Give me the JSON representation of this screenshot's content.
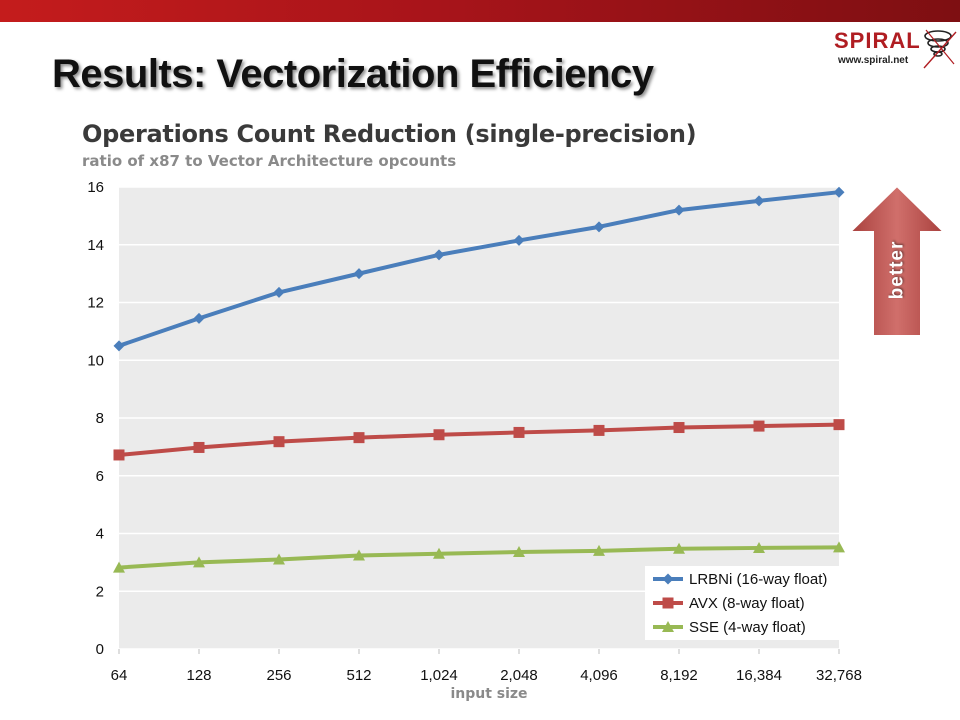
{
  "slide": {
    "title": "Results: Vectorization Efficiency",
    "logo_text": "SPIRAL",
    "logo_url": "www.spiral.net",
    "accent_color": "#b01d22"
  },
  "better_label": "better",
  "chart_data": {
    "type": "line",
    "title": "Operations Count Reduction (single-precision)",
    "subtitle": "ratio of x87 to Vector Architecture opcounts",
    "xlabel": "input size",
    "ylabel": "",
    "categories": [
      "64",
      "128",
      "256",
      "512",
      "1,024",
      "2,048",
      "4,096",
      "8,192",
      "16,384",
      "32,768"
    ],
    "ylim": [
      0,
      16
    ],
    "yticks": [
      "0",
      "2",
      "4",
      "6",
      "8",
      "10",
      "12",
      "14",
      "16"
    ],
    "grid": true,
    "legend_position": "bottom-right",
    "series": [
      {
        "name": "LRBNi (16-way float)",
        "color": "#4a7ebb",
        "marker": "diamond",
        "values": [
          10.5,
          11.45,
          12.35,
          13.0,
          13.65,
          14.15,
          14.62,
          15.2,
          15.52,
          15.82
        ]
      },
      {
        "name": "AVX (8-way float)",
        "color": "#be4b48",
        "marker": "square",
        "values": [
          6.72,
          6.98,
          7.18,
          7.32,
          7.42,
          7.5,
          7.57,
          7.67,
          7.72,
          7.77
        ]
      },
      {
        "name": "SSE (4-way float)",
        "color": "#98b954",
        "marker": "triangle",
        "values": [
          2.82,
          3.0,
          3.1,
          3.24,
          3.3,
          3.36,
          3.4,
          3.47,
          3.5,
          3.52
        ]
      }
    ]
  }
}
